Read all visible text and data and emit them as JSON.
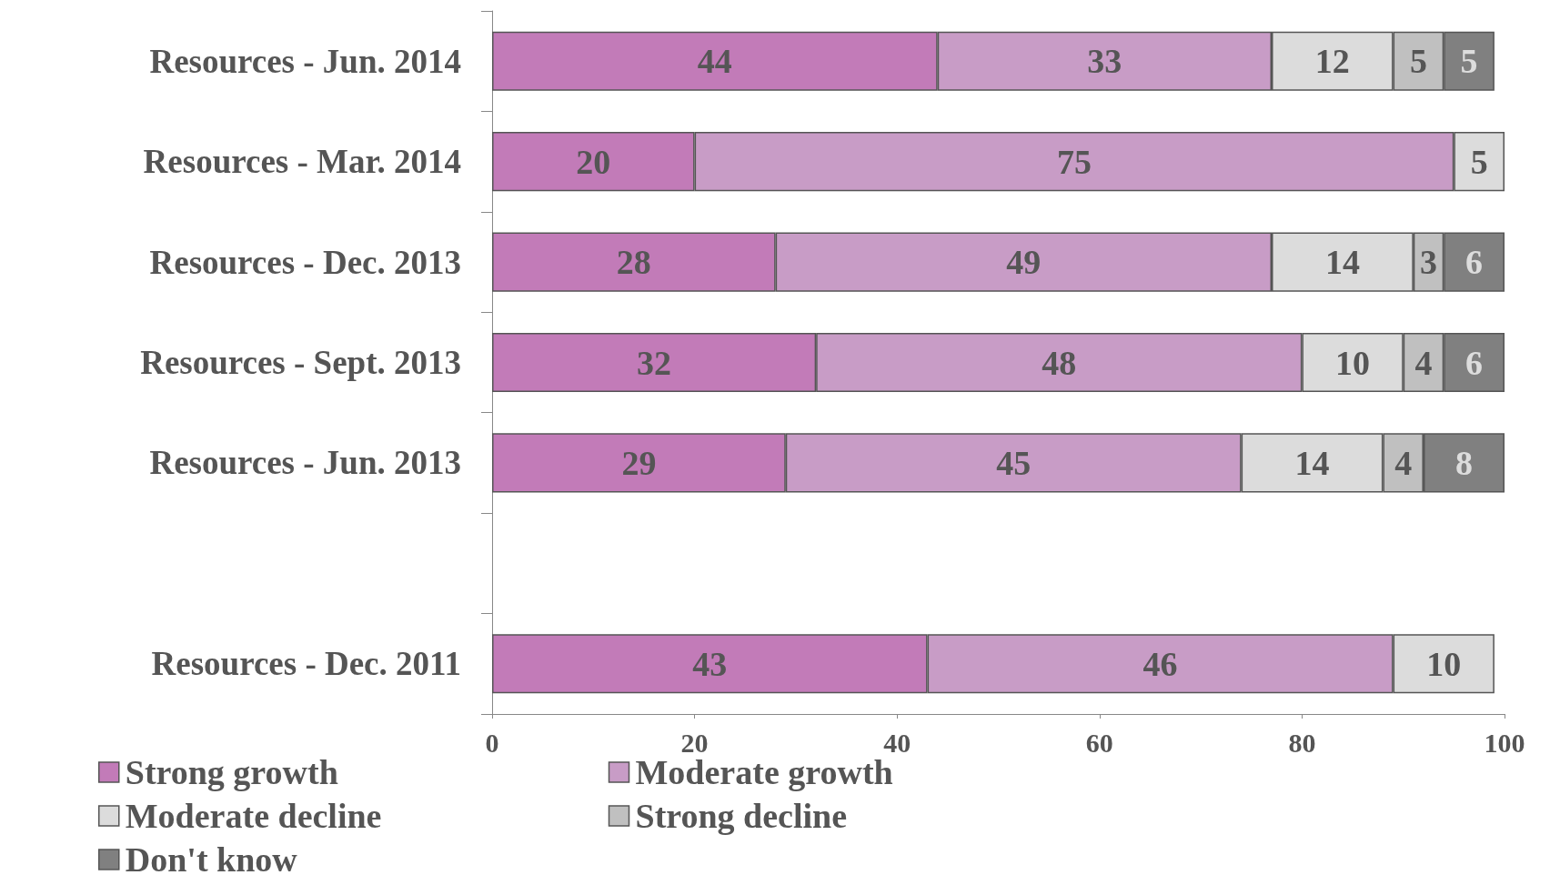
{
  "chart_data": {
    "type": "bar",
    "orientation": "horizontal",
    "stacked": true,
    "data_labels": true,
    "grid": false,
    "legend": "bottom",
    "categories": [
      "Resources - Jun. 2014",
      "Resources - Mar. 2014",
      "Resources - Dec. 2013",
      "Resources - Sept. 2013",
      "Resources - Jun. 2013",
      null,
      "Resources - Dec. 2011"
    ],
    "series": [
      {
        "name": "Strong growth",
        "color": "#c27bb8",
        "values": [
          44,
          20,
          28,
          32,
          29,
          null,
          43
        ]
      },
      {
        "name": "Moderate growth",
        "color": "#c89cc6",
        "values": [
          33,
          75,
          49,
          48,
          45,
          null,
          46
        ]
      },
      {
        "name": "Moderate decline",
        "color": "#dcdcdc",
        "values": [
          12,
          5,
          14,
          10,
          14,
          null,
          10
        ]
      },
      {
        "name": "Strong decline",
        "color": "#c0c0c0",
        "values": [
          5,
          null,
          3,
          4,
          4,
          null,
          null
        ]
      },
      {
        "name": "Don't know",
        "color": "#808080",
        "values": [
          5,
          null,
          6,
          6,
          8,
          null,
          null
        ]
      }
    ],
    "xlim": [
      0,
      100
    ],
    "xticks": [
      0,
      20,
      40,
      60,
      80,
      100
    ]
  }
}
